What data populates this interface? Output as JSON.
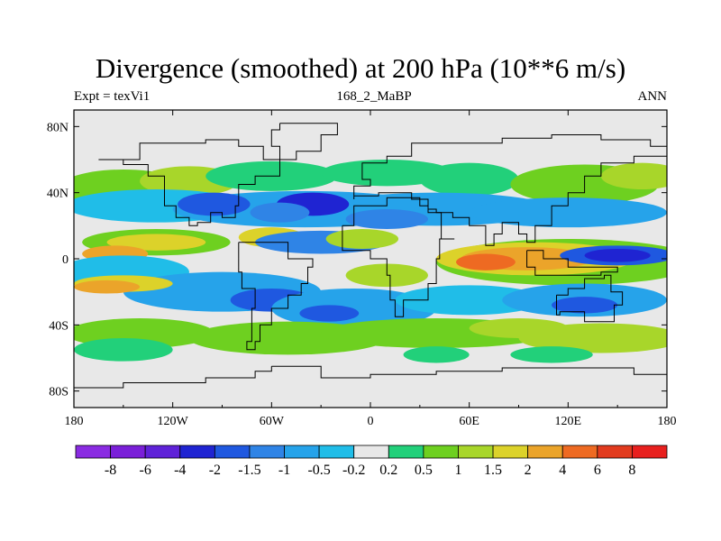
{
  "chart_data": {
    "type": "heatmap",
    "title": "Divergence (smoothed) at 200 hPa (10**6 m/s)",
    "left_label": "Expt = texVi1",
    "center_label": "168_2_MaBP",
    "right_label": "ANN",
    "x_ticks": [
      "180",
      "120W",
      "60W",
      "0",
      "60E",
      "120E",
      "180"
    ],
    "x_tick_values": [
      -180,
      -120,
      -60,
      0,
      60,
      120,
      180
    ],
    "y_ticks": [
      "80N",
      "40N",
      "0",
      "40S",
      "80S"
    ],
    "y_tick_values": [
      80,
      40,
      0,
      -40,
      -80
    ],
    "xlim": [
      -180,
      180
    ],
    "ylim": [
      -90,
      90
    ],
    "colorbar": {
      "labels": [
        "-8",
        "-6",
        "-4",
        "-2",
        "-1.5",
        "-1",
        "-0.5",
        "-0.2",
        "0.2",
        "0.5",
        "1",
        "1.5",
        "2",
        "4",
        "6",
        "8"
      ],
      "colors": [
        "#8a2be2",
        "#7a1fd8",
        "#5f22d8",
        "#1f24d2",
        "#1f58e0",
        "#2f84e6",
        "#26a3ea",
        "#20bde8",
        "#e8e8e8",
        "#22d07a",
        "#6ed020",
        "#a8d62a",
        "#dcd22a",
        "#eba42a",
        "#ee6a22",
        "#e23b1e",
        "#e8201e"
      ]
    }
  },
  "colors": {
    "land_outline": "#000000",
    "background": "#e8e8e8"
  }
}
